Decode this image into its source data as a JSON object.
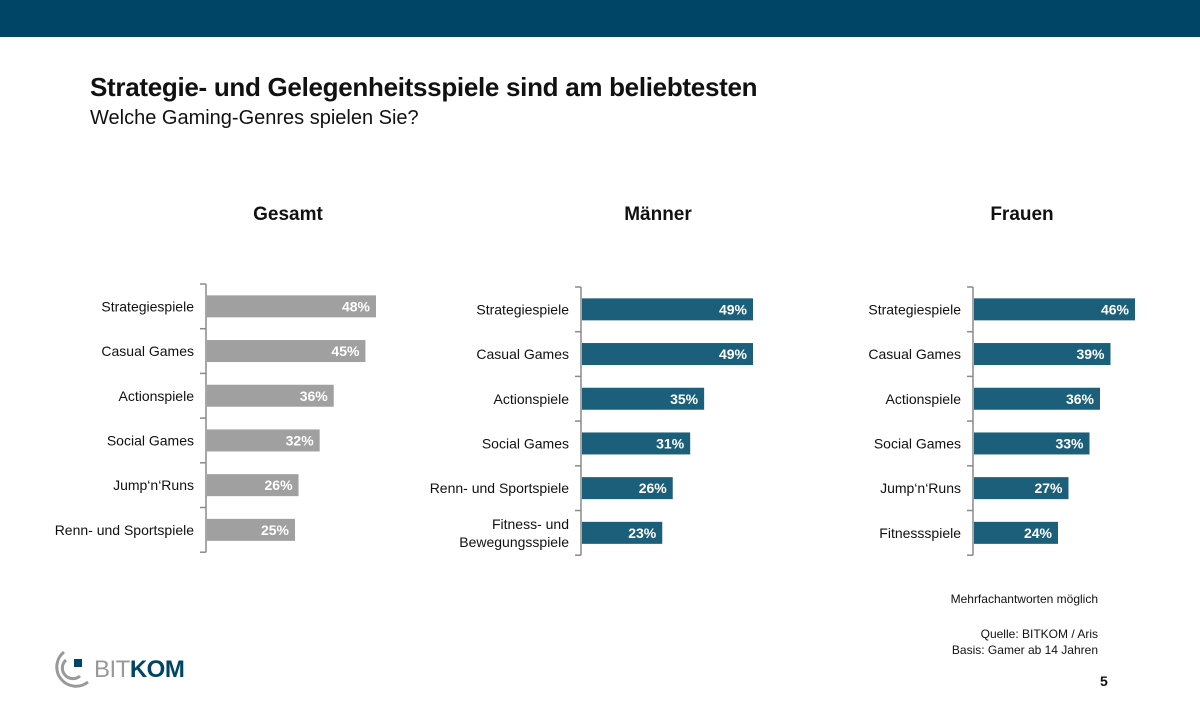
{
  "header": {
    "title": "Strategie- und Gelegenheitsspiele sind am beliebtesten",
    "subtitle": "Welche Gaming-Genres spielen Sie?"
  },
  "colors": {
    "topbar": "#004466",
    "gesamt_bar": "#a0a0a0",
    "gender_bar": "#1c5f7a",
    "axis": "#8a8a8a",
    "label_text": "#111111",
    "value_text": "#ffffff"
  },
  "chart_data": [
    {
      "type": "bar",
      "orientation": "horizontal",
      "title": "Gesamt",
      "categories": [
        "Strategiespiele",
        "Casual Games",
        "Actionspiele",
        "Social Games",
        "Jump‘n‘Runs",
        "Renn- und Sportspiele"
      ],
      "values": [
        48,
        45,
        36,
        32,
        26,
        25
      ],
      "value_labels": [
        "48%",
        "45%",
        "36%",
        "32%",
        "26%",
        "25%"
      ],
      "unit": "%",
      "xlim": [
        0,
        100
      ],
      "color": "#a0a0a0",
      "grid": false
    },
    {
      "type": "bar",
      "orientation": "horizontal",
      "title": "Männer",
      "categories": [
        "Strategiespiele",
        "Casual Games",
        "Actionspiele",
        "Social Games",
        "Renn- und Sportspiele",
        "Fitness- und Bewegungsspiele"
      ],
      "category_lines": [
        [
          "Strategiespiele"
        ],
        [
          "Casual Games"
        ],
        [
          "Actionspiele"
        ],
        [
          "Social Games"
        ],
        [
          "Renn- und Sportspiele"
        ],
        [
          "Fitness- und",
          "Bewegungsspiele"
        ]
      ],
      "values": [
        49,
        49,
        35,
        31,
        26,
        23
      ],
      "value_labels": [
        "49%",
        "49%",
        "35%",
        "31%",
        "26%",
        "23%"
      ],
      "unit": "%",
      "xlim": [
        0,
        100
      ],
      "color": "#1c5f7a",
      "grid": false
    },
    {
      "type": "bar",
      "orientation": "horizontal",
      "title": "Frauen",
      "categories": [
        "Strategiespiele",
        "Casual Games",
        "Actionspiele",
        "Social Games",
        "Jump‘n‘Runs",
        "Fitnessspiele"
      ],
      "values": [
        46,
        39,
        36,
        33,
        27,
        24
      ],
      "value_labels": [
        "46%",
        "39%",
        "36%",
        "33%",
        "27%",
        "24%"
      ],
      "unit": "%",
      "xlim": [
        0,
        100
      ],
      "color": "#1c5f7a",
      "grid": false
    }
  ],
  "footer": {
    "note": "Mehrfachantworten möglich",
    "source": "Quelle: BITKOM / Aris",
    "basis": "Basis: Gamer ab 14 Jahren",
    "page_number": "5",
    "logo_part1": "BIT",
    "logo_part2": "KOM"
  }
}
